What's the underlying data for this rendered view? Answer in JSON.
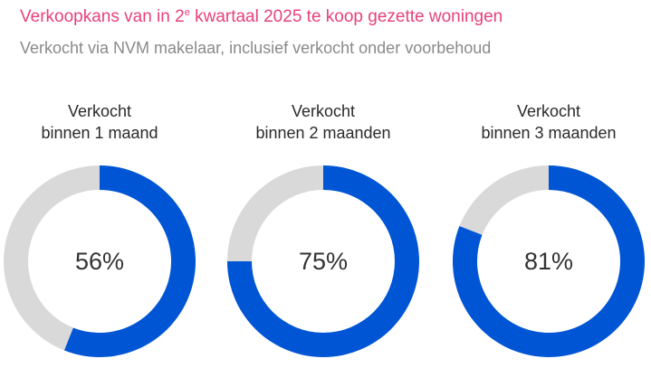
{
  "header": {
    "title_pre": "Verkoopkans van in 2",
    "title_sup": "e",
    "title_post": " kwartaal 2025 te koop gezette woningen",
    "subtitle": "Verkocht via NVM makelaar, inclusief verkocht onder voorbehoud"
  },
  "colors": {
    "title": "#e8417c",
    "subtitle": "#8a8a8a",
    "value_arc": "#0055d4",
    "remainder_arc": "#d9d9d9"
  },
  "chart_data": [
    {
      "type": "pie",
      "title": "",
      "label_lines": [
        "Verkocht",
        "binnen 1 maand"
      ],
      "value": 56,
      "value_label": "56%",
      "max": 100
    },
    {
      "type": "pie",
      "title": "",
      "label_lines": [
        "Verkocht",
        "binnen 2 maanden"
      ],
      "value": 75,
      "value_label": "75%",
      "max": 100
    },
    {
      "type": "pie",
      "title": "",
      "label_lines": [
        "Verkocht",
        "binnen 3 maanden"
      ],
      "value": 81,
      "value_label": "81%",
      "max": 100
    }
  ]
}
